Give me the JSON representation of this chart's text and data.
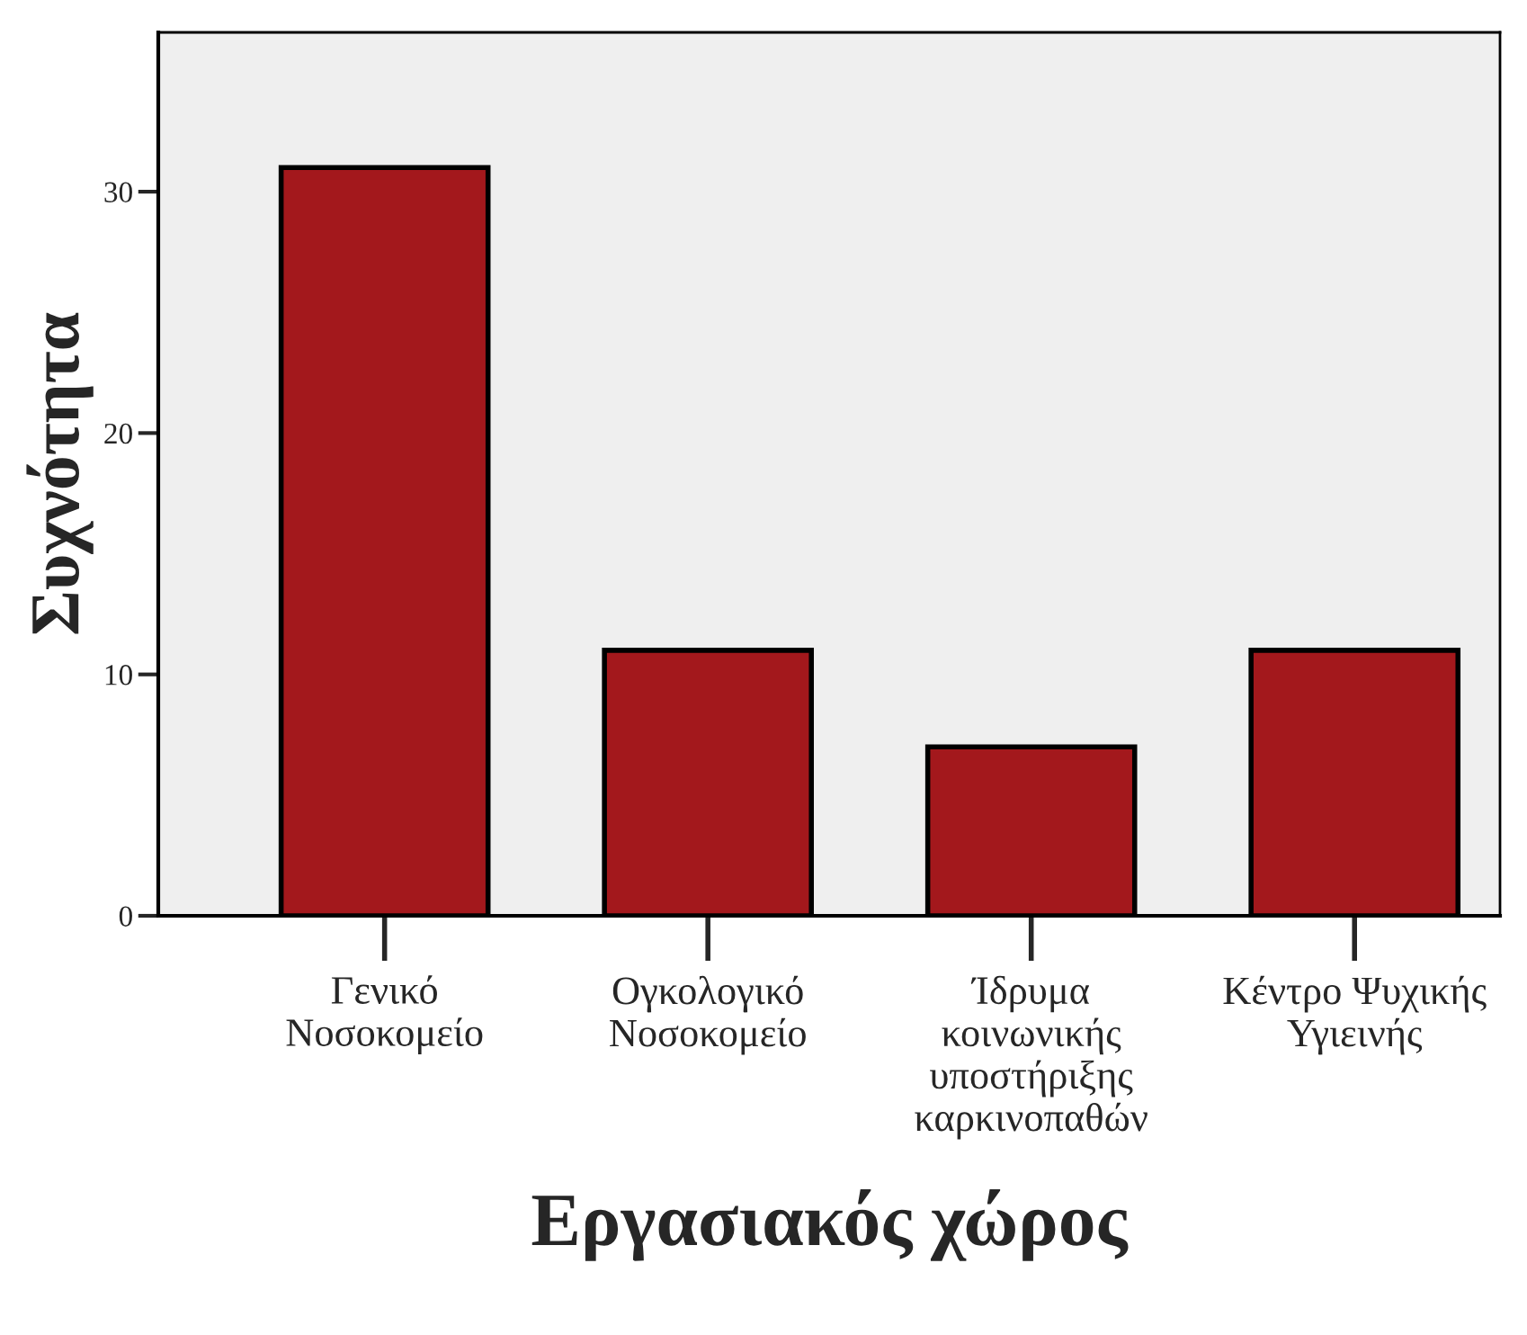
{
  "chart_data": {
    "type": "bar",
    "xlabel": "Εργασιακός χώρος",
    "ylabel": "Συχνότητα",
    "categories": [
      "Γενικό\nΝοσοκομείο",
      "Ογκολογικό\nΝοσοκομείο",
      "Ίδρυμα\nκοινωνικής\nυποστήριξης\nκαρκινοπαθών",
      "Κέντρο Ψυχικής\nΥγιεινής"
    ],
    "values": [
      31,
      11,
      7,
      11
    ],
    "color": "#a3181c",
    "ylim": [
      0,
      36.6
    ],
    "yticks": [
      0,
      10,
      20,
      30
    ],
    "grid": false,
    "legend": false
  }
}
